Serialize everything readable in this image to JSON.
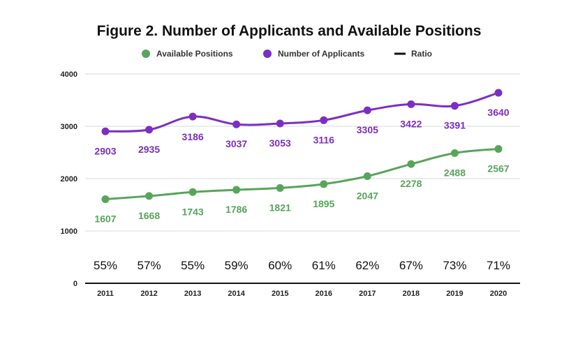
{
  "chart_data": {
    "type": "line",
    "title": "Figure 2. Number of Applicants and Available Positions",
    "categories": [
      "2011",
      "2012",
      "2013",
      "2014",
      "2015",
      "2016",
      "2017",
      "2018",
      "2019",
      "2020"
    ],
    "series": [
      {
        "name": "Available Positions",
        "color": "#57a55a",
        "values": [
          1607,
          1668,
          1743,
          1786,
          1821,
          1895,
          2047,
          2278,
          2488,
          2567
        ],
        "labels": [
          "1607",
          "1668",
          "1743",
          "1786",
          "1821",
          "1895",
          "2047",
          "2278",
          "2488",
          "2567"
        ]
      },
      {
        "name": "Number of Applicants",
        "color": "#7b2fc2",
        "values": [
          2903,
          2935,
          3186,
          3037,
          3053,
          3116,
          3305,
          3422,
          3391,
          3640
        ],
        "labels": [
          "2903",
          "2935",
          "3186",
          "3037",
          "3053",
          "3116",
          "3305",
          "3422",
          "3391",
          "3640"
        ]
      },
      {
        "name": "Ratio",
        "color": "#111111",
        "values": [
          0.55,
          0.57,
          0.55,
          0.59,
          0.6,
          0.61,
          0.62,
          0.67,
          0.73,
          0.71
        ],
        "labels": [
          "55%",
          "57%",
          "55%",
          "59%",
          "60%",
          "61%",
          "62%",
          "67%",
          "73%",
          "71%"
        ]
      }
    ],
    "yticks": [
      "0",
      "1000",
      "2000",
      "3000",
      "4000"
    ],
    "ylim": [
      0,
      4000
    ],
    "grid": true,
    "legend": "top"
  }
}
